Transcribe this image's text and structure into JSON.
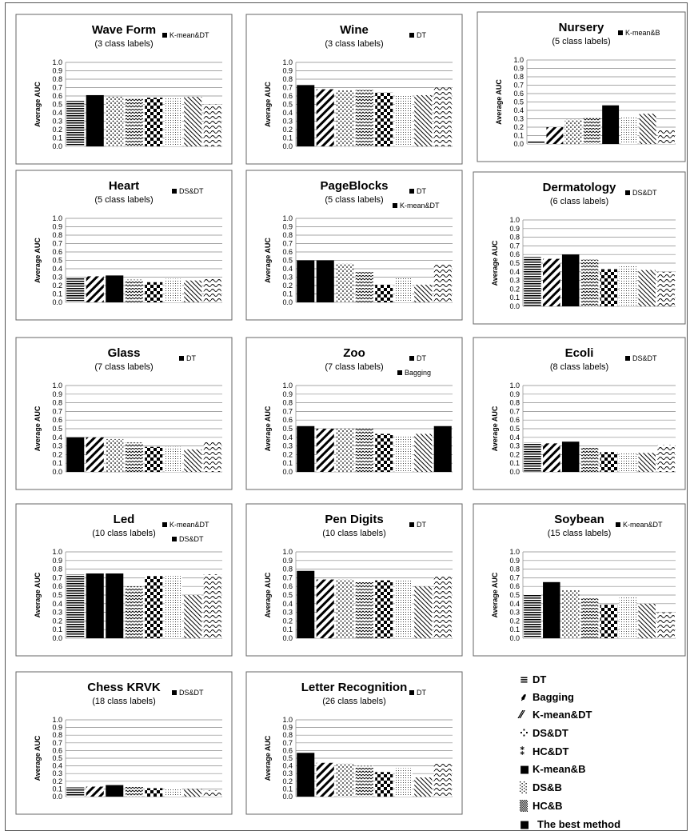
{
  "legend": [
    {
      "glyph": "≡",
      "label": "DT"
    },
    {
      "glyph": "⸙",
      "label": "Bagging"
    },
    {
      "glyph": "⁄⁄",
      "label": "K-mean&DT"
    },
    {
      "glyph": "⁘",
      "label": "DS&DT"
    },
    {
      "glyph": "⁑",
      "label": "HC&DT"
    },
    {
      "glyph": "■",
      "label": "K-mean&B"
    },
    {
      "glyph": "░",
      "label": "DS&B"
    },
    {
      "glyph": "▒",
      "label": "HC&B"
    },
    {
      "glyph": "■",
      "label": "The best method"
    }
  ],
  "chart_data": [
    {
      "type": "bar",
      "title": "Wave Form",
      "subtitle": "(3 class labels)",
      "ylabel": "Average AUC",
      "ylim": [
        0,
        1
      ],
      "yticks": [
        "0.0",
        "0.1",
        "0.2",
        "0.3",
        "0.4",
        "0.5",
        "0.6",
        "0.7",
        "0.8",
        "0.9",
        "1.0"
      ],
      "methods": [
        "DT",
        "K-mean&DT",
        "DS&DT",
        "HC&DT",
        "K-mean&B",
        "DS&B",
        "HC&B",
        "Bagging"
      ],
      "values": [
        0.54,
        0.61,
        0.59,
        0.58,
        0.58,
        0.59,
        0.59,
        0.5
      ],
      "best_index": 1,
      "annotations": [
        "K-mean&DT"
      ]
    },
    {
      "type": "bar",
      "title": "Wine",
      "subtitle": "(3 class labels)",
      "ylabel": "Average AUC",
      "ylim": [
        0,
        1
      ],
      "yticks": [
        "0.0",
        "0.1",
        "0.2",
        "0.3",
        "0.4",
        "0.5",
        "0.6",
        "0.7",
        "0.8",
        "0.9",
        "1.0"
      ],
      "methods": [
        "DT",
        "K-mean&DT",
        "DS&DT",
        "HC&DT",
        "K-mean&B",
        "DS&B",
        "HC&B",
        "Bagging"
      ],
      "values": [
        0.73,
        0.68,
        0.67,
        0.67,
        0.64,
        0.61,
        0.61,
        0.7
      ],
      "best_index": 0,
      "annotations": [
        "DT"
      ]
    },
    {
      "type": "bar",
      "title": "Nursery",
      "subtitle": "(5 class labels)",
      "ylabel": "Average AUC",
      "ylim": [
        0,
        1
      ],
      "yticks": [
        "0.0",
        "0.1",
        "0.2",
        "0.3",
        "0.4",
        "0.5",
        "0.6",
        "0.7",
        "0.8",
        "0.9",
        "1.0"
      ],
      "methods": [
        "DT",
        "K-mean&DT",
        "DS&DT",
        "HC&DT",
        "K-mean&B",
        "DS&B",
        "HC&B",
        "Bagging"
      ],
      "values": [
        0.03,
        0.2,
        0.29,
        0.32,
        0.46,
        0.32,
        0.36,
        0.17
      ],
      "best_index": 4,
      "annotations": [
        "K-mean&B"
      ]
    },
    {
      "type": "bar",
      "title": "Heart",
      "subtitle": "(5 class labels)",
      "ylabel": "Average AUC",
      "ylim": [
        0,
        1
      ],
      "yticks": [
        "0.0",
        "0.1",
        "0.2",
        "0.3",
        "0.4",
        "0.5",
        "0.6",
        "0.7",
        "0.8",
        "0.9",
        "1.0"
      ],
      "methods": [
        "DT",
        "K-mean&DT",
        "DS&DT",
        "HC&DT",
        "K-mean&B",
        "DS&B",
        "HC&B",
        "Bagging"
      ],
      "values": [
        0.29,
        0.31,
        0.32,
        0.27,
        0.24,
        0.28,
        0.26,
        0.28
      ],
      "best_index": 2,
      "annotations": [
        "DS&DT"
      ]
    },
    {
      "type": "bar",
      "title": "PageBlocks",
      "subtitle": "(5 class labels)",
      "ylabel": "Average AUC",
      "ylim": [
        0,
        1
      ],
      "yticks": [
        "0.0",
        "0.1",
        "0.2",
        "0.3",
        "0.4",
        "0.5",
        "0.6",
        "0.7",
        "0.8",
        "0.9",
        "1.0"
      ],
      "methods": [
        "DT",
        "K-mean&DT",
        "DS&DT",
        "HC&DT",
        "K-mean&B",
        "DS&B",
        "HC&B",
        "Bagging"
      ],
      "values": [
        0.5,
        0.5,
        0.46,
        0.36,
        0.21,
        0.29,
        0.21,
        0.46
      ],
      "best_index": [
        0,
        1
      ],
      "annotations": [
        "DT",
        "K-mean&DT"
      ]
    },
    {
      "type": "bar",
      "title": "Dermatology",
      "subtitle": "(6 class labels)",
      "ylabel": "Average AUC",
      "ylim": [
        0,
        1
      ],
      "yticks": [
        "0.0",
        "0.1",
        "0.2",
        "0.3",
        "0.4",
        "0.5",
        "0.6",
        "0.7",
        "0.8",
        "0.9",
        "1.0"
      ],
      "methods": [
        "DT",
        "K-mean&DT",
        "DS&DT",
        "HC&DT",
        "K-mean&B",
        "DS&B",
        "HC&B",
        "Bagging"
      ],
      "values": [
        0.57,
        0.55,
        0.6,
        0.54,
        0.43,
        0.48,
        0.42,
        0.4
      ],
      "best_index": 2,
      "annotations": [
        "DS&DT"
      ]
    },
    {
      "type": "bar",
      "title": "Glass",
      "subtitle": "(7 class labels)",
      "ylabel": "Average AUC",
      "ylim": [
        0,
        1
      ],
      "yticks": [
        "0.0",
        "0.1",
        "0.2",
        "0.3",
        "0.4",
        "0.5",
        "0.6",
        "0.7",
        "0.8",
        "0.9",
        "1.0"
      ],
      "methods": [
        "DT",
        "K-mean&DT",
        "DS&DT",
        "HC&DT",
        "K-mean&B",
        "DS&B",
        "HC&B",
        "Bagging"
      ],
      "values": [
        0.4,
        0.4,
        0.38,
        0.34,
        0.29,
        0.29,
        0.26,
        0.35
      ],
      "best_index": 0,
      "annotations": [
        "DT"
      ]
    },
    {
      "type": "bar",
      "title": "Zoo",
      "subtitle": "(7 class labels)",
      "ylabel": "Average AUC",
      "ylim": [
        0,
        1
      ],
      "yticks": [
        "0.0",
        "0.1",
        "0.2",
        "0.3",
        "0.4",
        "0.5",
        "0.6",
        "0.7",
        "0.8",
        "0.9",
        "1.0"
      ],
      "methods": [
        "DT",
        "K-mean&DT",
        "DS&DT",
        "HC&DT",
        "K-mean&B",
        "DS&B",
        "HC&B",
        "Bagging"
      ],
      "values": [
        0.53,
        0.5,
        0.5,
        0.5,
        0.44,
        0.42,
        0.44,
        0.53
      ],
      "best_index": [
        0,
        7
      ],
      "annotations": [
        "DT",
        "Bagging"
      ]
    },
    {
      "type": "bar",
      "title": "Ecoli",
      "subtitle": "(8 class labels)",
      "ylabel": "Average AUC",
      "ylim": [
        0,
        1
      ],
      "yticks": [
        "0.0",
        "0.1",
        "0.2",
        "0.3",
        "0.4",
        "0.5",
        "0.6",
        "0.7",
        "0.8",
        "0.9",
        "1.0"
      ],
      "methods": [
        "DT",
        "K-mean&DT",
        "DS&DT",
        "HC&DT",
        "K-mean&B",
        "DS&B",
        "HC&B",
        "Bagging"
      ],
      "values": [
        0.34,
        0.33,
        0.35,
        0.28,
        0.23,
        0.23,
        0.22,
        0.31
      ],
      "best_index": 2,
      "annotations": [
        "DS&DT"
      ]
    },
    {
      "type": "bar",
      "title": "Led",
      "subtitle": "(10 class labels)",
      "ylabel": "Average AUC",
      "ylim": [
        0,
        1
      ],
      "yticks": [
        "0.0",
        "0.1",
        "0.2",
        "0.3",
        "0.4",
        "0.5",
        "0.6",
        "0.7",
        "0.8",
        "0.9",
        "1.0"
      ],
      "methods": [
        "DT",
        "K-mean&DT",
        "DS&DT",
        "HC&DT",
        "K-mean&B",
        "DS&B",
        "HC&B",
        "Bagging"
      ],
      "values": [
        0.74,
        0.75,
        0.75,
        0.6,
        0.72,
        0.72,
        0.5,
        0.74
      ],
      "best_index": [
        1,
        2
      ],
      "annotations": [
        "K-mean&DT",
        "DS&DT"
      ]
    },
    {
      "type": "bar",
      "title": "Pen Digits",
      "subtitle": "(10 class labels)",
      "ylabel": "Average AUC",
      "ylim": [
        0,
        1
      ],
      "yticks": [
        "0.0",
        "0.1",
        "0.2",
        "0.3",
        "0.4",
        "0.5",
        "0.6",
        "0.7",
        "0.8",
        "0.9",
        "1.0"
      ],
      "methods": [
        "DT",
        "K-mean&DT",
        "DS&DT",
        "HC&DT",
        "K-mean&B",
        "DS&B",
        "HC&B",
        "Bagging"
      ],
      "values": [
        0.78,
        0.68,
        0.68,
        0.66,
        0.67,
        0.67,
        0.6,
        0.72
      ],
      "best_index": 0,
      "annotations": [
        "DT"
      ]
    },
    {
      "type": "bar",
      "title": "Soybean",
      "subtitle": "(15 class labels)",
      "ylabel": "Average AUC",
      "ylim": [
        0,
        1
      ],
      "yticks": [
        "0.0",
        "0.1",
        "0.2",
        "0.3",
        "0.4",
        "0.5",
        "0.6",
        "0.7",
        "0.8",
        "0.9",
        "1.0"
      ],
      "methods": [
        "DT",
        "K-mean&DT",
        "DS&DT",
        "HC&DT",
        "K-mean&B",
        "DS&B",
        "HC&B",
        "Bagging"
      ],
      "values": [
        0.51,
        0.65,
        0.56,
        0.46,
        0.39,
        0.49,
        0.4,
        0.3
      ],
      "best_index": 1,
      "annotations": [
        "K-mean&DT"
      ]
    },
    {
      "type": "bar",
      "title": "Chess KRVK",
      "subtitle": "(18 class labels)",
      "ylabel": "Average AUC",
      "ylim": [
        0,
        1
      ],
      "yticks": [
        "0.0",
        "0.1",
        "0.2",
        "0.3",
        "0.4",
        "0.5",
        "0.6",
        "0.7",
        "0.8",
        "0.9",
        "1.0"
      ],
      "methods": [
        "DT",
        "K-mean&DT",
        "DS&DT",
        "HC&DT",
        "K-mean&B",
        "DS&B",
        "HC&B",
        "Bagging"
      ],
      "values": [
        0.12,
        0.13,
        0.15,
        0.13,
        0.11,
        0.11,
        0.1,
        0.08
      ],
      "best_index": 2,
      "annotations": [
        "DS&DT"
      ]
    },
    {
      "type": "bar",
      "title": "Letter Recognition",
      "subtitle": "(26 class labels)",
      "ylabel": "Average AUC",
      "ylim": [
        0,
        1
      ],
      "yticks": [
        "0.0",
        "0.1",
        "0.2",
        "0.3",
        "0.4",
        "0.5",
        "0.6",
        "0.7",
        "0.8",
        "0.9",
        "1.0"
      ],
      "methods": [
        "DT",
        "K-mean&DT",
        "DS&DT",
        "HC&DT",
        "K-mean&B",
        "DS&B",
        "HC&B",
        "Bagging"
      ],
      "values": [
        0.57,
        0.44,
        0.43,
        0.4,
        0.32,
        0.37,
        0.25,
        0.43
      ],
      "best_index": 0,
      "annotations": [
        "DT"
      ]
    }
  ]
}
